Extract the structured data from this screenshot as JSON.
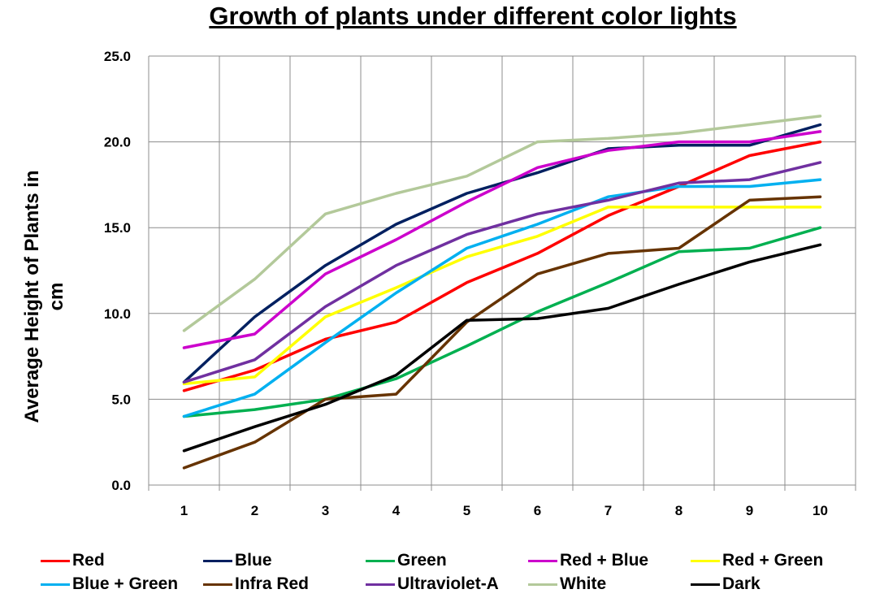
{
  "chart_data": {
    "type": "line",
    "title": "Growth of plants under different color lights",
    "xlabel": "",
    "ylabel": "Average Height of Plants in cm",
    "categories": [
      "1",
      "2",
      "3",
      "4",
      "5",
      "6",
      "7",
      "8",
      "9",
      "10"
    ],
    "ylim": [
      0,
      25
    ],
    "yticks": [
      "0.0",
      "5.0",
      "10.0",
      "15.0",
      "20.0",
      "25.0"
    ],
    "grid": true,
    "legend_position": "bottom",
    "series": [
      {
        "name": "Red",
        "color": "#ff0000",
        "values": [
          5.5,
          6.7,
          8.5,
          9.5,
          11.8,
          13.5,
          15.7,
          17.4,
          19.2,
          20.0
        ]
      },
      {
        "name": "Blue",
        "color": "#002060",
        "values": [
          6.0,
          9.8,
          12.8,
          15.2,
          17.0,
          18.2,
          19.6,
          19.8,
          19.8,
          21.0
        ]
      },
      {
        "name": "Green",
        "color": "#00b050",
        "values": [
          4.0,
          4.4,
          5.0,
          6.2,
          8.1,
          10.1,
          11.8,
          13.6,
          13.8,
          15.0
        ]
      },
      {
        "name": "Red + Blue",
        "color": "#cc00cc",
        "values": [
          8.0,
          8.8,
          12.3,
          14.3,
          16.5,
          18.5,
          19.5,
          20.0,
          20.0,
          20.6
        ]
      },
      {
        "name": "Red + Green",
        "color": "#ffff00",
        "values": [
          5.9,
          6.3,
          9.8,
          11.5,
          13.3,
          14.5,
          16.2,
          16.2,
          16.2,
          16.2
        ]
      },
      {
        "name": "Blue + Green",
        "color": "#00b0f0",
        "values": [
          4.0,
          5.3,
          8.3,
          11.2,
          13.8,
          15.2,
          16.8,
          17.4,
          17.4,
          17.8
        ]
      },
      {
        "name": "Infra Red",
        "color": "#663300",
        "values": [
          1.0,
          2.5,
          5.0,
          5.3,
          9.5,
          12.3,
          13.5,
          13.8,
          16.6,
          16.8
        ]
      },
      {
        "name": "Ultraviolet-A",
        "color": "#7030a0",
        "values": [
          6.0,
          7.3,
          10.4,
          12.8,
          14.6,
          15.8,
          16.6,
          17.6,
          17.8,
          18.8
        ]
      },
      {
        "name": "White",
        "color": "#b3c99a",
        "values": [
          9.0,
          12.0,
          15.8,
          17.0,
          18.0,
          20.0,
          20.2,
          20.5,
          21.0,
          21.5
        ]
      },
      {
        "name": "Dark",
        "color": "#000000",
        "values": [
          2.0,
          3.4,
          4.7,
          6.4,
          9.6,
          9.7,
          10.3,
          11.7,
          13.0,
          14.0
        ]
      }
    ]
  }
}
